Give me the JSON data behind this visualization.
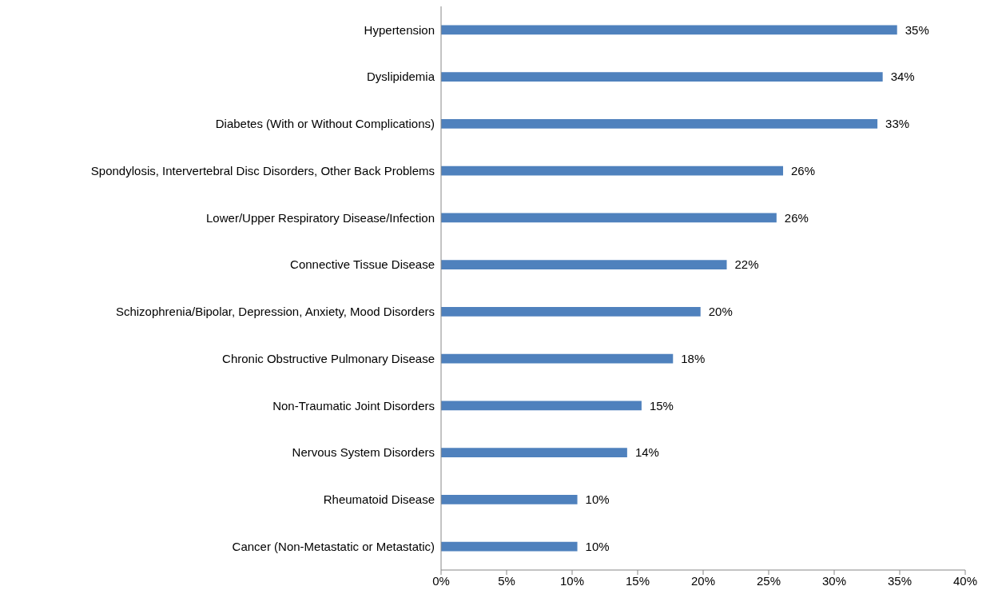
{
  "chart_data": {
    "type": "bar",
    "orientation": "horizontal",
    "categories": [
      "Hypertension",
      "Dyslipidemia",
      "Diabetes (With or Without Complications)",
      "Spondylosis, Intervertebral Disc Disorders, Other Back Problems",
      "Lower/Upper Respiratory Disease/Infection",
      "Connective Tissue Disease",
      "Schizophrenia/Bipolar, Depression, Anxiety, Mood Disorders",
      "Chronic Obstructive Pulmonary Disease",
      "Non-Traumatic Joint Disorders",
      "Nervous System Disorders",
      "Rheumatoid Disease",
      "Cancer (Non-Metastatic or Metastatic)"
    ],
    "values": [
      34.8,
      33.7,
      33.3,
      26.1,
      25.6,
      21.8,
      19.8,
      17.7,
      15.3,
      14.2,
      10.4,
      10.4
    ],
    "value_labels": [
      "35%",
      "34%",
      "33%",
      "26%",
      "26%",
      "22%",
      "20%",
      "18%",
      "15%",
      "14%",
      "10%",
      "10%"
    ],
    "color": "#4f81bd",
    "xlim": [
      0,
      40
    ],
    "xticks": [
      {
        "value": 0,
        "label": "0%"
      },
      {
        "value": 5,
        "label": "5%"
      },
      {
        "value": 10,
        "label": "10%"
      },
      {
        "value": 15,
        "label": "15%"
      },
      {
        "value": 20,
        "label": "20%"
      },
      {
        "value": 25,
        "label": "25%"
      },
      {
        "value": 30,
        "label": "30%"
      },
      {
        "value": 35,
        "label": "35%"
      },
      {
        "value": 40,
        "label": "40%"
      }
    ],
    "grid": false,
    "legend": false
  }
}
